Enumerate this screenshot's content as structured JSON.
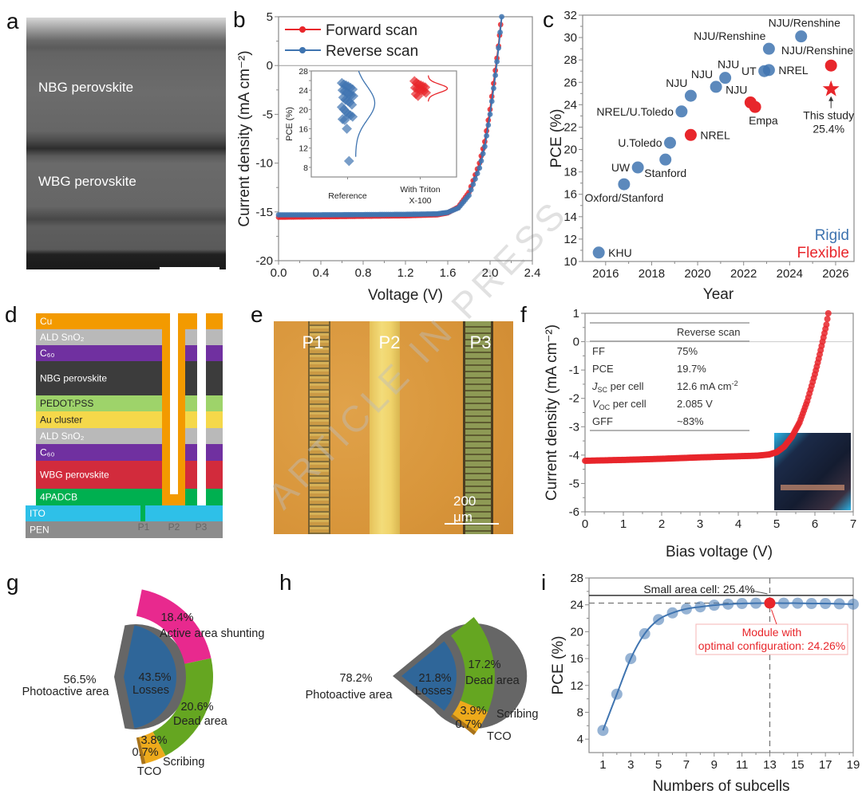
{
  "watermark": "ARTICLE IN PRESS",
  "panel_labels": {
    "a": "a",
    "b": "b",
    "c": "c",
    "d": "d",
    "e": "e",
    "f": "f",
    "g": "g",
    "h": "h",
    "i": "i"
  },
  "panel_a": {
    "layer_top": "NBG perovskite",
    "layer_bottom": "WBG perovskite"
  },
  "panel_d": {
    "layers": [
      {
        "label": "Cu",
        "color": "#F39A00",
        "text_color": "#ffffff"
      },
      {
        "label": "ALD SnO₂",
        "color": "#B9B9B9",
        "text_color": "#ffffff"
      },
      {
        "label": "C₆₀",
        "color": "#7030A0",
        "text_color": "#ffffff"
      },
      {
        "label": "NBG perovskite",
        "color": "#3C3C3C",
        "text_color": "#ffffff"
      },
      {
        "label": "PEDOT:PSS",
        "color": "#9ED36A",
        "text_color": "#222222"
      },
      {
        "label": "Au cluster",
        "color": "#F5D84A",
        "text_color": "#222222"
      },
      {
        "label": "ALD SnO₂",
        "color": "#B9B9B9",
        "text_color": "#ffffff"
      },
      {
        "label": "C₆₀",
        "color": "#7030A0",
        "text_color": "#ffffff"
      },
      {
        "label": "WBG perovskite",
        "color": "#D22B3C",
        "text_color": "#ffffff"
      },
      {
        "label": "4PADCB",
        "color": "#00B050",
        "text_color": "#ffffff"
      },
      {
        "label": "ITO",
        "color": "#2EC0E8",
        "text_color": "#ffffff"
      },
      {
        "label": "PEN",
        "color": "#8C8C8C",
        "text_color": "#ffffff"
      }
    ],
    "scribes": [
      "P1",
      "P2",
      "P3"
    ]
  },
  "panel_e": {
    "scribes": [
      "P1",
      "P2",
      "P3"
    ],
    "scale_bar": "200 μm"
  },
  "chart_data": [
    {
      "id": "b",
      "type": "line",
      "xlabel": "Voltage (V)",
      "ylabel": "Current density (mA cm⁻²)",
      "xlim": [
        0,
        2.4
      ],
      "ylim": [
        -20,
        5
      ],
      "xticks": [
        0,
        0.4,
        0.8,
        1.2,
        1.6,
        2.0,
        2.4
      ],
      "xtick_labels": [
        "0.0",
        "0.4",
        "0.8",
        "1.2",
        "1.6",
        "2.0",
        "2.4"
      ],
      "yticks": [
        -20,
        -15,
        -10,
        -5,
        0,
        5
      ],
      "legend_position": "top-left",
      "series": [
        {
          "name": "Forward scan",
          "color": "#E8262B",
          "points": [
            [
              0,
              -15.55
            ],
            [
              0.4,
              -15.5
            ],
            [
              0.8,
              -15.45
            ],
            [
              1.2,
              -15.4
            ],
            [
              1.5,
              -15.3
            ],
            [
              1.6,
              -15.1
            ],
            [
              1.7,
              -14.5
            ],
            [
              1.8,
              -13.0
            ],
            [
              1.9,
              -10.0
            ],
            [
              1.95,
              -7.8
            ],
            [
              2.0,
              -4.5
            ],
            [
              2.05,
              -0.5
            ],
            [
              2.08,
              2.0
            ],
            [
              2.1,
              4.2
            ]
          ]
        },
        {
          "name": "Reverse scan",
          "color": "#3F74B0",
          "points": [
            [
              0,
              -15.3
            ],
            [
              0.4,
              -15.3
            ],
            [
              0.8,
              -15.28
            ],
            [
              1.2,
              -15.25
            ],
            [
              1.5,
              -15.2
            ],
            [
              1.6,
              -15.05
            ],
            [
              1.7,
              -14.6
            ],
            [
              1.8,
              -13.3
            ],
            [
              1.9,
              -10.5
            ],
            [
              1.95,
              -8.3
            ],
            [
              2.0,
              -5.0
            ],
            [
              2.05,
              -1.0
            ],
            [
              2.08,
              1.8
            ],
            [
              2.11,
              5.0
            ]
          ]
        }
      ]
    },
    {
      "id": "b_inset",
      "type": "scatter",
      "ylabel": "PCE (%)",
      "ylim": [
        6,
        28
      ],
      "yticks": [
        8,
        12,
        16,
        20,
        24,
        28
      ],
      "categories": [
        "Reference",
        "With Triton X-100"
      ],
      "category_lines": [
        [
          "Reference"
        ],
        [
          "With Triton",
          "X-100"
        ]
      ],
      "series": [
        {
          "category": "Reference",
          "color": "#3F74B0",
          "values": [
            25.5,
            25.2,
            25,
            24.8,
            24.5,
            24.2,
            24,
            23.8,
            23.5,
            23.2,
            23,
            22.8,
            22.5,
            22,
            21.8,
            21.5,
            21,
            20.5,
            20,
            19.5,
            19,
            18.8,
            18.5,
            18,
            17.8,
            16,
            9.3
          ]
        },
        {
          "category": "With Triton X-100",
          "color": "#E8262B",
          "values": [
            25.9,
            25.5,
            25.2,
            25,
            24.8,
            24.6,
            24.5,
            24.3,
            24.2,
            24,
            23.8,
            23.5,
            23.2,
            22.8
          ]
        }
      ]
    },
    {
      "id": "c",
      "type": "scatter",
      "xlabel": "Year",
      "ylabel": "PCE (%)",
      "xlim": [
        2015,
        2026.8
      ],
      "ylim": [
        10,
        32
      ],
      "xticks": [
        2016,
        2018,
        2020,
        2022,
        2024,
        2026
      ],
      "yticks": [
        10,
        12,
        14,
        16,
        18,
        20,
        22,
        24,
        26,
        28,
        30,
        32
      ],
      "legend": [
        {
          "name": "Rigid",
          "color": "#3F74B0"
        },
        {
          "name": "Flexible",
          "color": "#E8262B"
        }
      ],
      "legend_position": "bottom-right",
      "points": [
        {
          "x": 2015.7,
          "y": 10.8,
          "label": "KHU",
          "group": "Rigid"
        },
        {
          "x": 2016.8,
          "y": 16.9,
          "label": "Oxford/Stanford",
          "group": "Rigid"
        },
        {
          "x": 2017.4,
          "y": 18.4,
          "label": "UW",
          "group": "Rigid"
        },
        {
          "x": 2018.6,
          "y": 19.1,
          "label": "Stanford",
          "group": "Rigid"
        },
        {
          "x": 2018.8,
          "y": 20.6,
          "label": "U.Toledo",
          "group": "Rigid"
        },
        {
          "x": 2019.3,
          "y": 23.4,
          "label": "NREL/U.Toledo",
          "group": "Rigid"
        },
        {
          "x": 2019.7,
          "y": 24.8,
          "label": "NJU",
          "group": "Rigid"
        },
        {
          "x": 2020.8,
          "y": 25.6,
          "label": "NJU",
          "group": "Rigid"
        },
        {
          "x": 2021.2,
          "y": 26.4,
          "label": "NJU",
          "group": "Rigid"
        },
        {
          "x": 2022.9,
          "y": 27.0,
          "label": "UT",
          "group": "Rigid"
        },
        {
          "x": 2023.1,
          "y": 27.1,
          "label": "NREL",
          "group": "Rigid"
        },
        {
          "x": 2023.1,
          "y": 29.0,
          "label": "NJU/Renshine",
          "group": "Rigid"
        },
        {
          "x": 2024.5,
          "y": 30.1,
          "label": "NJU/Renshine",
          "group": "Rigid"
        },
        {
          "x": 2019.7,
          "y": 21.3,
          "label": "NREL",
          "group": "Flexible"
        },
        {
          "x": 2022.3,
          "y": 24.2,
          "label": "NJU",
          "group": "Flexible"
        },
        {
          "x": 2022.5,
          "y": 23.8,
          "label": "Empa",
          "group": "Flexible"
        },
        {
          "x": 2025.8,
          "y": 27.5,
          "label": "NJU/Renshine",
          "group": "Flexible"
        }
      ],
      "highlight": {
        "x": 2025.8,
        "y": 25.4,
        "marker": "star",
        "color": "#E8262B",
        "label_lines": [
          "This study",
          "25.4%"
        ]
      }
    },
    {
      "id": "f",
      "type": "line",
      "xlabel": "Bias voltage (V)",
      "ylabel": "Current density (mA cm⁻²)",
      "xlim": [
        0,
        7
      ],
      "ylim": [
        -6,
        1
      ],
      "xticks": [
        0,
        1,
        2,
        3,
        4,
        5,
        6,
        7
      ],
      "yticks": [
        -6,
        -5,
        -4,
        -3,
        -2,
        -1,
        0,
        1
      ],
      "series": [
        {
          "name": "",
          "color": "#E8262B",
          "points": [
            [
              0,
              -4.2
            ],
            [
              1,
              -4.17
            ],
            [
              2,
              -4.13
            ],
            [
              3,
              -4.08
            ],
            [
              4,
              -4.04
            ],
            [
              4.5,
              -4.02
            ],
            [
              4.8,
              -3.98
            ],
            [
              5.0,
              -3.9
            ],
            [
              5.2,
              -3.7
            ],
            [
              5.4,
              -3.35
            ],
            [
              5.6,
              -2.85
            ],
            [
              5.8,
              -2.1
            ],
            [
              6.0,
              -1.15
            ],
            [
              6.1,
              -0.6
            ],
            [
              6.2,
              0.0
            ],
            [
              6.3,
              0.6
            ],
            [
              6.35,
              1.0
            ]
          ]
        }
      ],
      "table": {
        "header": "Reverse scan",
        "rows": [
          {
            "sym": "",
            "sub": "",
            "label": "FF",
            "value": "75%",
            "value_sup": ""
          },
          {
            "sym": "",
            "sub": "",
            "label": "PCE",
            "value": "19.7%",
            "value_sup": ""
          },
          {
            "sym": "J",
            "sub": "SC",
            "label": " per cell",
            "value": "12.6 mA cm",
            "value_sup": "-2"
          },
          {
            "sym": "V",
            "sub": "OC",
            "label": " per cell",
            "value": "2.085 V",
            "value_sup": ""
          },
          {
            "sym": "",
            "sub": "",
            "label": "GFF",
            "value": "~83%",
            "value_sup": ""
          }
        ]
      }
    },
    {
      "id": "g",
      "type": "pie",
      "slices": [
        {
          "label": "Photoactive area",
          "value": 56.5,
          "color": "#666666"
        },
        {
          "label": "Losses",
          "value": 43.5,
          "color": "#2F6699"
        }
      ],
      "breakdown": [
        {
          "label": "Active area shunting",
          "value": 18.4,
          "color": "#E8298E"
        },
        {
          "label": "Dead area",
          "value": 20.6,
          "color": "#65A621"
        },
        {
          "label": "Scribing",
          "value": 3.8,
          "color": "#EDAA1B"
        },
        {
          "label": "TCO",
          "value": 0.7,
          "color": "#A8731A"
        }
      ]
    },
    {
      "id": "h",
      "type": "pie",
      "slices": [
        {
          "label": "Photoactive area",
          "value": 78.2,
          "color": "#666666"
        },
        {
          "label": "Losses",
          "value": 21.8,
          "color": "#2F6699"
        }
      ],
      "breakdown": [
        {
          "label": "Dead area",
          "value": 17.2,
          "color": "#65A621"
        },
        {
          "label": "Scribing",
          "value": 3.9,
          "color": "#EDAA1B"
        },
        {
          "label": "TCO",
          "value": 0.7,
          "color": "#A8731A"
        }
      ]
    },
    {
      "id": "i",
      "type": "line",
      "xlabel": "Numbers of subcells",
      "ylabel": "PCE (%)",
      "xlim": [
        0,
        19
      ],
      "ylim": [
        2,
        28
      ],
      "xticks": [
        1,
        3,
        5,
        7,
        9,
        11,
        13,
        15,
        17,
        19
      ],
      "yticks": [
        4,
        8,
        12,
        16,
        20,
        24,
        28
      ],
      "x": [
        1,
        2,
        3,
        4,
        5,
        6,
        7,
        8,
        9,
        10,
        11,
        12,
        13,
        14,
        15,
        16,
        17,
        18,
        19
      ],
      "y": [
        5.3,
        10.7,
        16.0,
        19.7,
        21.8,
        22.8,
        23.4,
        23.7,
        23.95,
        24.1,
        24.2,
        24.25,
        24.26,
        24.25,
        24.25,
        24.2,
        24.2,
        24.15,
        24.1
      ],
      "color": "#3F74B0",
      "reference_line": {
        "y": 25.4,
        "label": "Small area cell: 25.4%"
      },
      "optimum": {
        "x": 13,
        "y": 24.26,
        "color": "#E8262B",
        "label_lines": [
          "Module with",
          "optimal configuration: 24.26%"
        ]
      }
    }
  ]
}
